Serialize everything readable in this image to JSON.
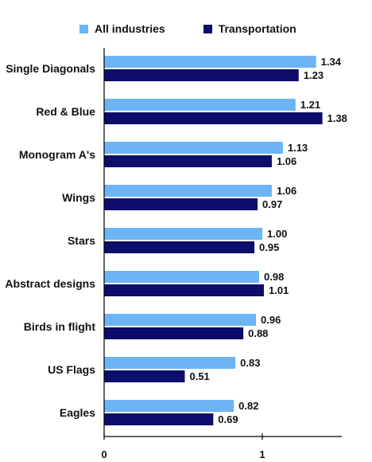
{
  "chart_data": {
    "type": "bar",
    "orientation": "horizontal",
    "title": "",
    "xlabel": "",
    "ylabel": "",
    "categories": [
      "Single Diagonals",
      "Red & Blue",
      "Monogram A's",
      "Wings",
      "Stars",
      "Abstract designs",
      "Birds in flight",
      "US Flags",
      "Eagles"
    ],
    "series": [
      {
        "name": "All industries",
        "color": "#6CB4F4",
        "values": [
          1.34,
          1.21,
          1.13,
          1.06,
          1.0,
          0.98,
          0.96,
          0.83,
          0.82
        ],
        "labels": [
          "1.34",
          "1.21",
          "1.13",
          "1.06",
          "1.00",
          "0.98",
          "0.96",
          "0.83",
          "0.82"
        ]
      },
      {
        "name": "Transportation",
        "color": "#0D0D6B",
        "values": [
          1.23,
          1.38,
          1.06,
          0.97,
          0.95,
          1.01,
          0.88,
          0.51,
          0.69
        ],
        "labels": [
          "1.23",
          "1.38",
          "1.06",
          "0.97",
          "0.95",
          "1.01",
          "0.88",
          "0.51",
          "0.69"
        ]
      }
    ],
    "xlim": [
      0,
      1.5
    ],
    "xticks": [
      {
        "value": 0,
        "label": "0"
      },
      {
        "value": 1,
        "label": "1"
      }
    ],
    "grid": false,
    "legend_position": "top"
  }
}
